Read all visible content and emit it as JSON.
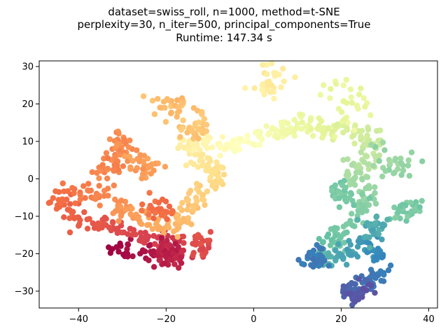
{
  "chart_data": {
    "type": "scatter",
    "title_lines": [
      "dataset=swiss_roll, n=1000, method=t-SNE",
      "perplexity=30, n_iter=500, principal_components=True",
      "Runtime: 147.34 s"
    ],
    "xlabel": "",
    "ylabel": "",
    "xlim": [
      -49,
      42
    ],
    "ylim": [
      -34.5,
      31.5
    ],
    "xticks": [
      -40,
      -20,
      0,
      20,
      40
    ],
    "yticks": [
      -30,
      -20,
      -10,
      0,
      10,
      20,
      30
    ],
    "grid": false,
    "colormap": "Spectral",
    "color_encoding": "position along the swiss-roll manifold (red → yellow → green → blue)",
    "trajectory": [
      [
        -33,
        -18
      ],
      [
        -29,
        -19
      ],
      [
        -25,
        -20
      ],
      [
        -21,
        -21
      ],
      [
        -18,
        -22
      ],
      [
        -16,
        -20
      ],
      [
        -20,
        -17
      ],
      [
        -25,
        -16
      ],
      [
        -29,
        -14
      ],
      [
        -32,
        -12
      ],
      [
        -36,
        -12
      ],
      [
        -40,
        -11
      ],
      [
        -43,
        -8
      ],
      [
        -44,
        -5
      ],
      [
        -41,
        -2
      ],
      [
        -36,
        -4
      ],
      [
        -32,
        -6
      ],
      [
        -30,
        -9
      ],
      [
        -26,
        -10
      ],
      [
        -23,
        -12
      ],
      [
        -19,
        -13
      ],
      [
        -16,
        -12
      ],
      [
        -15,
        -9
      ],
      [
        -14,
        -6
      ],
      [
        -12,
        -4
      ],
      [
        -9,
        -1
      ],
      [
        -8,
        2
      ],
      [
        -11,
        4
      ],
      [
        -14,
        6
      ],
      [
        -16,
        9
      ],
      [
        -13,
        10
      ],
      [
        -9,
        9
      ],
      [
        -5,
        8
      ],
      [
        -2,
        10
      ],
      [
        1,
        11
      ],
      [
        4,
        12
      ],
      [
        7,
        13
      ],
      [
        10,
        14
      ],
      [
        13,
        15
      ],
      [
        16,
        14
      ],
      [
        20,
        13
      ],
      [
        24,
        12
      ],
      [
        27,
        11
      ],
      [
        28,
        7
      ],
      [
        25,
        4
      ],
      [
        22,
        3
      ],
      [
        23,
        0
      ],
      [
        25,
        -3
      ],
      [
        26,
        -6
      ],
      [
        24,
        -9
      ],
      [
        21,
        -12
      ],
      [
        20,
        -16
      ],
      [
        17,
        -18
      ],
      [
        14,
        -20
      ],
      [
        15,
        -23
      ],
      [
        19,
        -21
      ],
      [
        23,
        -19
      ],
      [
        26,
        -18
      ],
      [
        28,
        -20
      ],
      [
        30,
        -23
      ],
      [
        28,
        -26
      ],
      [
        26,
        -28
      ],
      [
        23,
        -29
      ],
      [
        21,
        -30
      ],
      [
        24,
        -31
      ],
      [
        27,
        -30
      ]
    ],
    "clusters": [
      {
        "cx": 3,
        "cy": 26,
        "r": 4,
        "t": 0.44
      },
      {
        "cx": 22,
        "cy": 20,
        "r": 5,
        "t": 0.58
      },
      {
        "cx": 32,
        "cy": 5,
        "r": 4,
        "t": 0.73
      },
      {
        "cx": 35,
        "cy": -8,
        "r": 3,
        "t": 0.77
      },
      {
        "cx": -19,
        "cy": 19,
        "r": 3.5,
        "t": 0.33
      },
      {
        "cx": -13,
        "cy": 14,
        "r": 3,
        "t": 0.35
      },
      {
        "cx": -30,
        "cy": 9,
        "r": 3,
        "t": 0.25
      },
      {
        "cx": -33,
        "cy": 3,
        "r": 3,
        "t": 0.24
      },
      {
        "cx": -25,
        "cy": 3,
        "r": 3,
        "t": 0.27
      },
      {
        "cx": -22,
        "cy": -8,
        "r": 3,
        "t": 0.2
      },
      {
        "cx": -19,
        "cy": -19,
        "r": 3,
        "t": 0.05
      },
      {
        "cx": -13,
        "cy": -17,
        "r": 2.5,
        "t": 0.13
      },
      {
        "cx": 14,
        "cy": -21,
        "r": 3,
        "t": 0.92
      },
      {
        "cx": 28,
        "cy": -13,
        "r": 3,
        "t": 0.84
      },
      {
        "cx": 20,
        "cy": -4,
        "r": 3,
        "t": 0.78
      }
    ]
  }
}
